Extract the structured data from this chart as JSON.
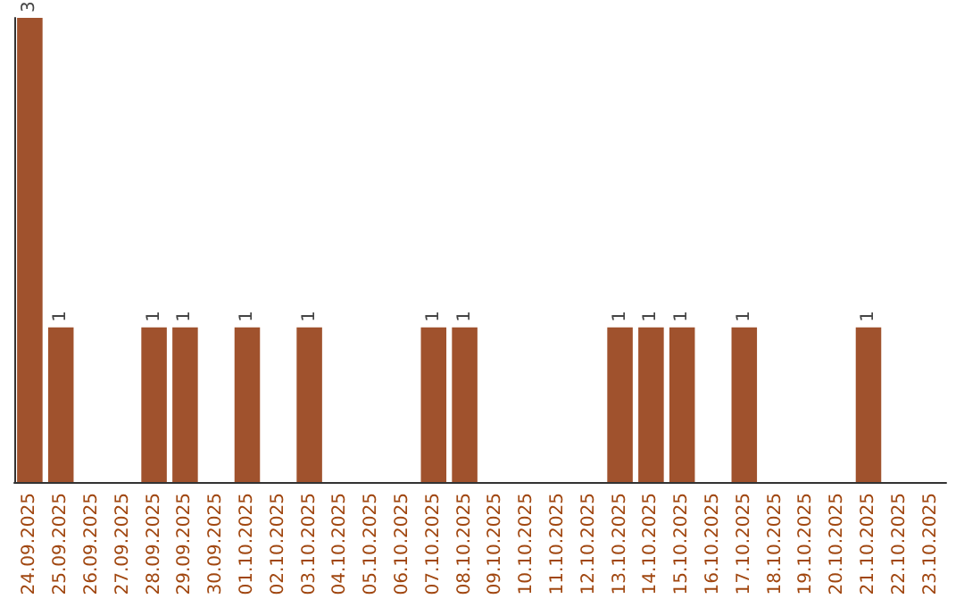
{
  "chart_data": {
    "type": "bar",
    "categories": [
      "24.09.2025",
      "25.09.2025",
      "26.09.2025",
      "27.09.2025",
      "28.09.2025",
      "29.09.2025",
      "30.09.2025",
      "01.10.2025",
      "02.10.2025",
      "03.10.2025",
      "04.10.2025",
      "05.10.2025",
      "06.10.2025",
      "07.10.2025",
      "08.10.2025",
      "09.10.2025",
      "10.10.2025",
      "11.10.2025",
      "12.10.2025",
      "13.10.2025",
      "14.10.2025",
      "15.10.2025",
      "16.10.2025",
      "17.10.2025",
      "18.10.2025",
      "19.10.2025",
      "20.10.2025",
      "21.10.2025",
      "22.10.2025",
      "23.10.2025"
    ],
    "values": [
      3,
      1,
      0,
      0,
      1,
      1,
      0,
      1,
      0,
      1,
      0,
      0,
      0,
      1,
      1,
      0,
      0,
      0,
      0,
      1,
      1,
      1,
      0,
      1,
      0,
      0,
      0,
      1,
      0,
      0
    ],
    "value_labels": [
      "3",
      "1",
      null,
      null,
      "1",
      "1",
      null,
      "1",
      null,
      "1",
      null,
      null,
      null,
      "1",
      "1",
      null,
      null,
      null,
      null,
      "1",
      "1",
      "1",
      null,
      "1",
      null,
      null,
      null,
      "1",
      null,
      null
    ],
    "color": "#a0522d"
  }
}
